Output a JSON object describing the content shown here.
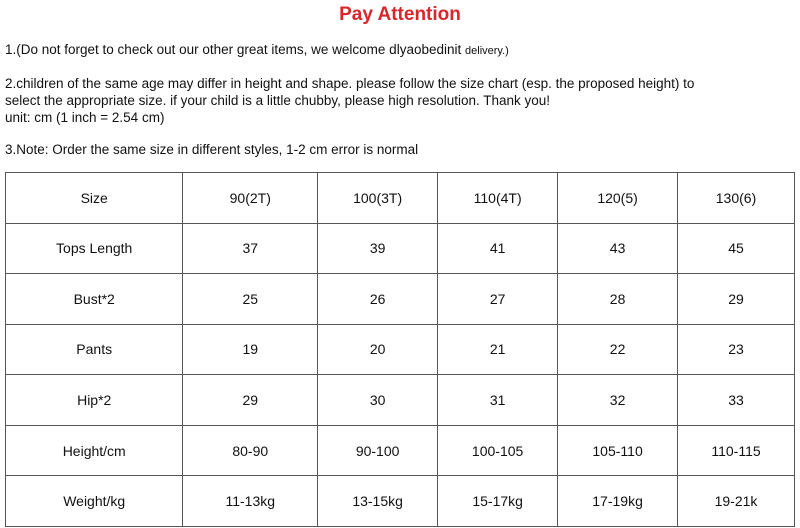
{
  "header": {
    "title": "Pay Attention"
  },
  "notes": {
    "note1": {
      "main": "1.(Do not forget to check out our other great items, we welcome dlyaobedinit",
      "small": "delivery.)"
    },
    "note2": [
      "2.children of the same age may differ in height and shape. please follow the size chart (esp. the proposed height) to",
      "select the appropriate size. if your child is a little chubby, please high resolution. Thank you!",
      "unit: cm (1 inch = 2.54 cm)"
    ],
    "note3": "3.Note: Order the same size in different styles, 1-2 cm error is normal"
  },
  "table": {
    "rows": [
      [
        "Size",
        "90(2T)",
        "100(3T)",
        "110(4T)",
        "120(5)",
        "130(6)"
      ],
      [
        "Tops Length",
        "37",
        "39",
        "41",
        "43",
        "45"
      ],
      [
        "Bust*2",
        "25",
        "26",
        "27",
        "28",
        "29"
      ],
      [
        "Pants",
        "19",
        "20",
        "21",
        "22",
        "23"
      ],
      [
        "Hip*2",
        "29",
        "30",
        "31",
        "32",
        "33"
      ],
      [
        "Height/cm",
        "80-90",
        "90-100",
        "100-105",
        "105-110",
        "110-115"
      ],
      [
        "Weight/kg",
        "11-13kg",
        "13-15kg",
        "15-17kg",
        "17-19kg",
        "19-21k"
      ]
    ]
  }
}
